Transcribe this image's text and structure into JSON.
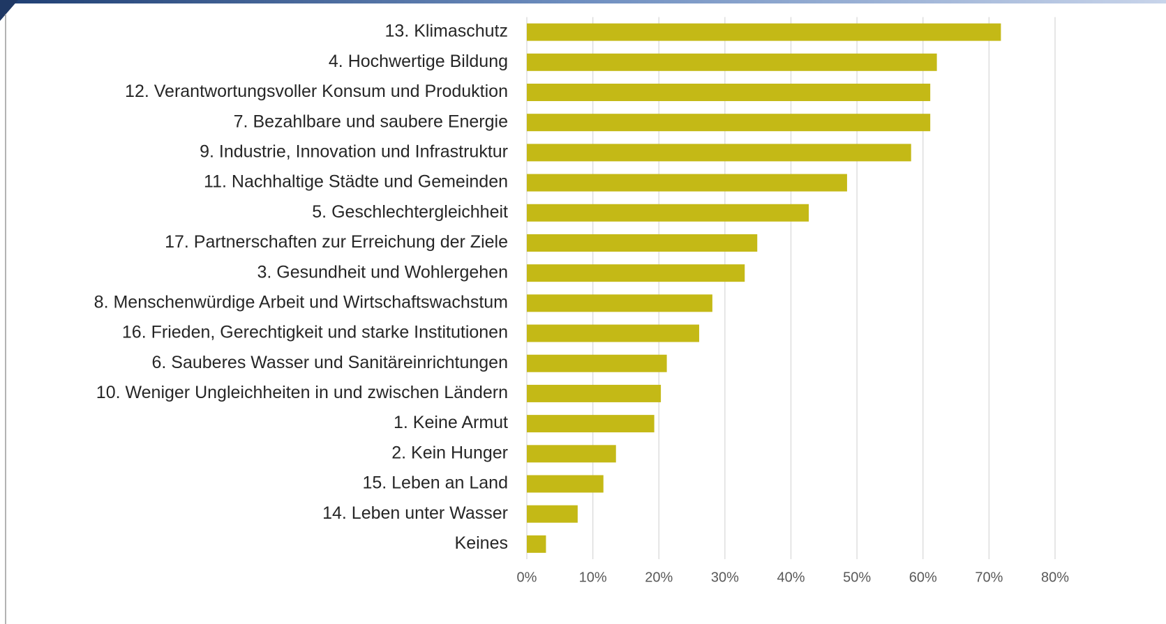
{
  "chart_data": {
    "type": "bar",
    "horizontal": true,
    "categories": [
      "13. Klimaschutz",
      "4. Hochwertige Bildung",
      "12. Verantwortungsvoller Konsum und Produktion",
      "7. Bezahlbare und saubere Energie",
      "9. Industrie, Innovation und Infrastruktur",
      "11. Nachhaltige Städte und Gemeinden",
      "5. Geschlechtergleichheit",
      "17. Partnerschaften zur Erreichung der Ziele",
      "3. Gesundheit und Wohlergehen",
      "8. Menschenwürdige Arbeit und Wirtschaftswachstum",
      "16. Frieden, Gerechtigkeit und starke Institutionen",
      "6. Sauberes Wasser und Sanitäreinrichtungen",
      "10. Weniger Ungleichheiten in und zwischen Ländern",
      "1. Keine Armut",
      "2. Kein Hunger",
      "15. Leben an Land",
      "14. Leben unter Wasser",
      "Keines"
    ],
    "values": [
      71.8,
      62.1,
      61.1,
      61.1,
      58.2,
      48.5,
      42.7,
      34.9,
      33,
      28.1,
      26.1,
      21.2,
      20.3,
      19.3,
      13.5,
      11.6,
      7.7,
      2.9
    ],
    "color": "#c4b916",
    "xlim": [
      0,
      80
    ],
    "xticks": [
      {
        "value": 0,
        "label": "0%"
      },
      {
        "value": 10,
        "label": "10%"
      },
      {
        "value": 20,
        "label": "20%"
      },
      {
        "value": 30,
        "label": "30%"
      },
      {
        "value": 40,
        "label": "40%"
      },
      {
        "value": 50,
        "label": "50%"
      },
      {
        "value": 60,
        "label": "60%"
      },
      {
        "value": 70,
        "label": "70%"
      },
      {
        "value": 80,
        "label": "80%"
      }
    ],
    "grid": true
  }
}
